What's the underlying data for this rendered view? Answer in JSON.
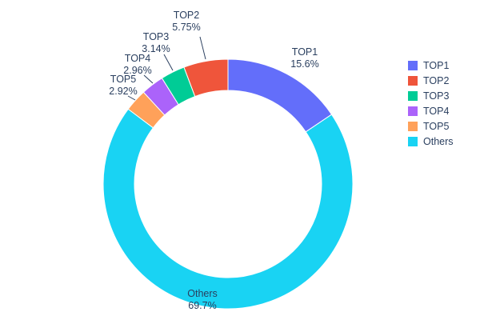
{
  "chart_data": {
    "type": "pie",
    "subtype": "donut",
    "title": "",
    "labels": [
      "TOP1",
      "TOP2",
      "TOP3",
      "TOP4",
      "TOP5",
      "Others"
    ],
    "values": [
      15.6,
      5.75,
      3.14,
      2.96,
      2.92,
      69.7
    ],
    "display_percents": [
      "15.6%",
      "5.75%",
      "3.14%",
      "2.96%",
      "2.92%",
      "69.7%"
    ],
    "colors": [
      "#636efa",
      "#ef553b",
      "#00cc96",
      "#ab63fa",
      "#ffa15a",
      "#19d3f3"
    ],
    "hole": 0.75,
    "clockwise_order_from_top": [
      "TOP1",
      "Others",
      "TOP5",
      "TOP4",
      "TOP3",
      "TOP2"
    ],
    "legend": {
      "position": "right",
      "entries": [
        "TOP1",
        "TOP2",
        "TOP3",
        "TOP4",
        "TOP5",
        "Others"
      ]
    },
    "text_color": "#2a3f5f",
    "background": "#ffffff"
  }
}
